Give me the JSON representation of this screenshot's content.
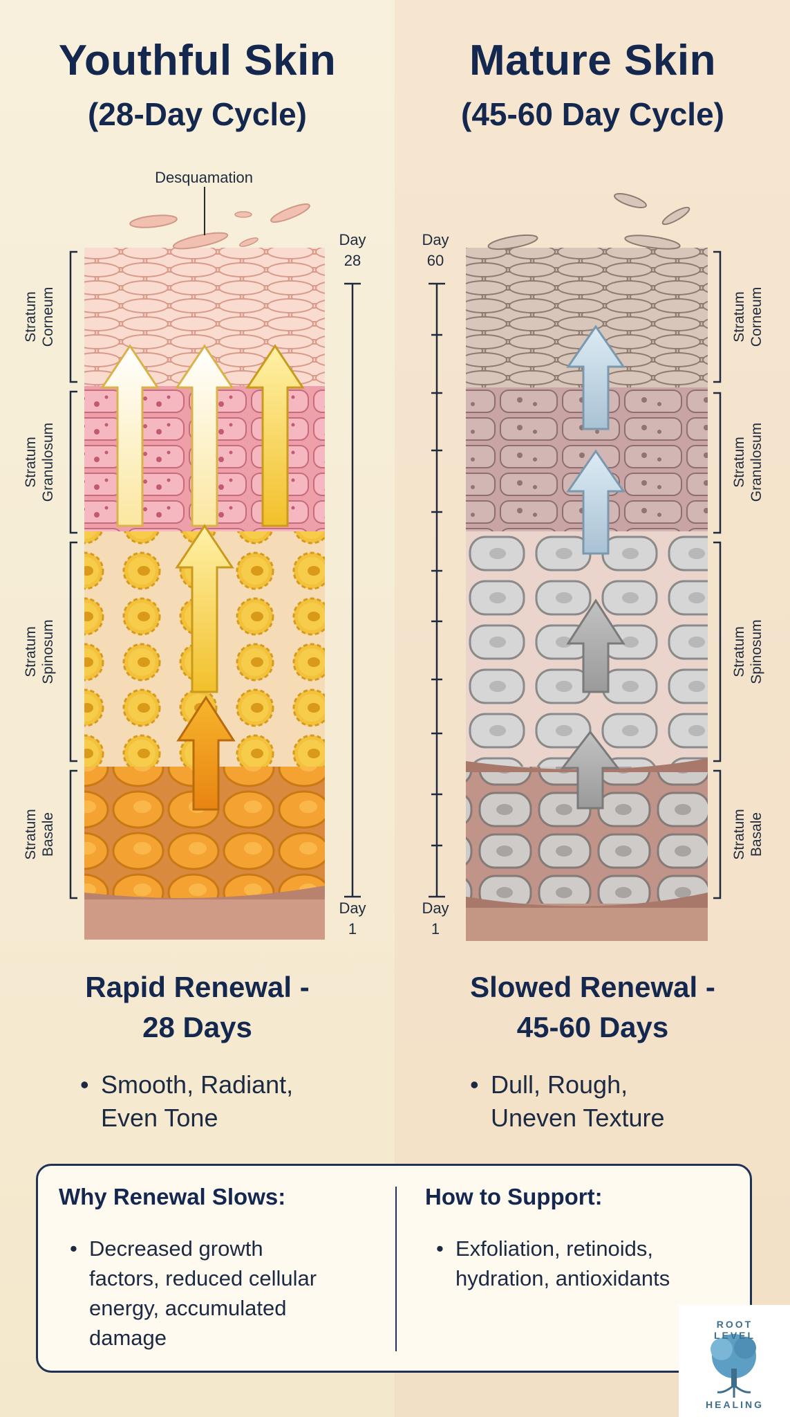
{
  "left": {
    "title_line1": "Youthful Skin",
    "title_line2": "(28-Day Cycle)",
    "desquamation": "Desquamation",
    "day_top": "Day",
    "day_top_num": "28",
    "day_bottom": "Day",
    "day_bottom_num": "1",
    "heading_line1": "Rapid Renewal -",
    "heading_line2": "28 Days",
    "bullet_line1": "Smooth, Radiant,",
    "bullet_line2": "Even Tone"
  },
  "right": {
    "title_line1": "Mature Skin",
    "title_line2": "(45-60 Day Cycle)",
    "day_top": "Day",
    "day_top_num": "60",
    "day_bottom": "Day",
    "day_bottom_num": "1",
    "heading_line1": "Slowed Renewal -",
    "heading_line2": "45-60 Days",
    "bullet_line1": "Dull, Rough,",
    "bullet_line2": "Uneven Texture"
  },
  "layers": {
    "corneum": [
      "Stratum",
      "Corneum"
    ],
    "granulosum": [
      "Stratum",
      "Granulosum"
    ],
    "spinosum": [
      "Stratum",
      "Spinosum"
    ],
    "basale": [
      "Stratum",
      "Basale"
    ]
  },
  "panel": {
    "why_title": "Why Renewal Slows:",
    "why_lines": [
      "Decreased growth",
      "factors, reduced cellular",
      "energy, accumulated",
      "damage"
    ],
    "how_title": "How to Support:",
    "how_lines": [
      "Exfoliation, retinoids,",
      "hydration, antioxidants"
    ]
  },
  "logo": {
    "top_text": "ROOT LEVEL",
    "bottom_text": "HEALING"
  },
  "colors": {
    "navy": "#14284f",
    "corneum_young": "#f2c4b6",
    "granulosum_young": "#f2a8b2",
    "spinosum_young": "#f3c445",
    "basale_young": "#f29a2c",
    "mature_gray": "#b8b2ac"
  }
}
